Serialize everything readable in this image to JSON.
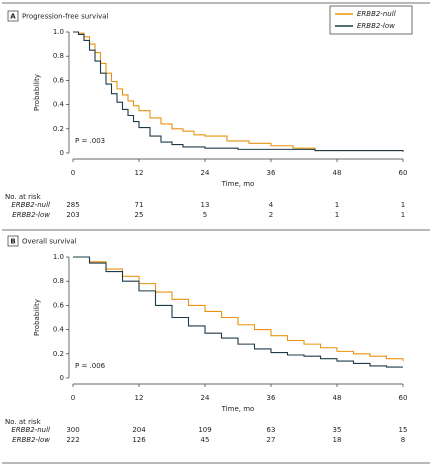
{
  "chart_data": [
    {
      "type": "km",
      "panel": "A",
      "title": "Progression-free survival",
      "xlabel": "Time, mo",
      "ylabel": "Probability",
      "annotation": "P = .003",
      "xlim": [
        0,
        60
      ],
      "xticks": [
        0,
        12,
        24,
        36,
        48,
        60
      ],
      "ylim": [
        0,
        1
      ],
      "yticks": [
        0,
        0.2,
        0.4,
        0.6,
        0.8,
        {
          "value": 1,
          "label": "1.0"
        }
      ],
      "legend": "upper right",
      "series": [
        {
          "name": "ERBB2-null",
          "color": "#e8930f",
          "x": [
            0,
            1,
            2,
            3,
            4,
            5,
            6,
            7,
            8,
            9,
            10,
            11,
            12,
            14,
            16,
            18,
            20,
            22,
            24,
            28,
            32,
            36,
            40,
            44,
            60
          ],
          "values": [
            1,
            0.99,
            0.96,
            0.9,
            0.83,
            0.74,
            0.66,
            0.59,
            0.53,
            0.48,
            0.43,
            0.39,
            0.35,
            0.29,
            0.24,
            0.2,
            0.18,
            0.15,
            0.14,
            0.1,
            0.08,
            0.06,
            0.04,
            0.02,
            0.02
          ]
        },
        {
          "name": "ERBB2-low",
          "color": "#1d3a4a",
          "x": [
            0,
            1,
            2,
            3,
            4,
            5,
            6,
            7,
            8,
            9,
            10,
            11,
            12,
            14,
            16,
            18,
            20,
            24,
            30,
            44,
            60
          ],
          "values": [
            1,
            0.98,
            0.93,
            0.85,
            0.76,
            0.66,
            0.57,
            0.49,
            0.42,
            0.36,
            0.31,
            0.26,
            0.21,
            0.14,
            0.09,
            0.07,
            0.05,
            0.04,
            0.03,
            0.02,
            0.01
          ]
        }
      ],
      "risk_table": {
        "title": "No. at risk",
        "rows": [
          [
            285,
            71,
            13,
            4,
            1,
            1
          ],
          [
            203,
            25,
            5,
            2,
            1,
            1
          ]
        ]
      }
    },
    {
      "type": "km",
      "panel": "B",
      "title": "Overall survival",
      "xlabel": "Time, mo",
      "ylabel": "Probability",
      "annotation": "P = .006",
      "xlim": [
        0,
        60
      ],
      "xticks": [
        0,
        12,
        24,
        36,
        48,
        60
      ],
      "ylim": [
        0,
        1
      ],
      "yticks": [
        0,
        0.2,
        0.4,
        0.6,
        0.8,
        {
          "value": 1,
          "label": "1.0"
        }
      ],
      "series": [
        {
          "name": "ERBB2-null",
          "color": "#e8930f",
          "x": [
            0,
            3,
            6,
            9,
            12,
            15,
            18,
            21,
            24,
            27,
            30,
            33,
            36,
            39,
            42,
            45,
            48,
            51,
            54,
            57,
            60
          ],
          "values": [
            1,
            0.96,
            0.9,
            0.84,
            0.78,
            0.71,
            0.65,
            0.6,
            0.55,
            0.5,
            0.44,
            0.4,
            0.35,
            0.31,
            0.28,
            0.25,
            0.22,
            0.2,
            0.18,
            0.16,
            0.14
          ]
        },
        {
          "name": "ERBB2-low",
          "color": "#1d3a4a",
          "x": [
            0,
            3,
            6,
            9,
            12,
            15,
            18,
            21,
            24,
            27,
            30,
            33,
            36,
            39,
            42,
            45,
            48,
            51,
            54,
            57,
            60
          ],
          "values": [
            1,
            0.95,
            0.88,
            0.8,
            0.72,
            0.6,
            0.5,
            0.43,
            0.37,
            0.33,
            0.28,
            0.24,
            0.21,
            0.19,
            0.18,
            0.16,
            0.14,
            0.12,
            0.1,
            0.09,
            0.09
          ]
        }
      ],
      "risk_table": {
        "title": "No. at risk",
        "rows": [
          [
            300,
            204,
            109,
            63,
            35,
            15
          ],
          [
            222,
            126,
            45,
            27,
            18,
            8
          ]
        ]
      }
    }
  ]
}
